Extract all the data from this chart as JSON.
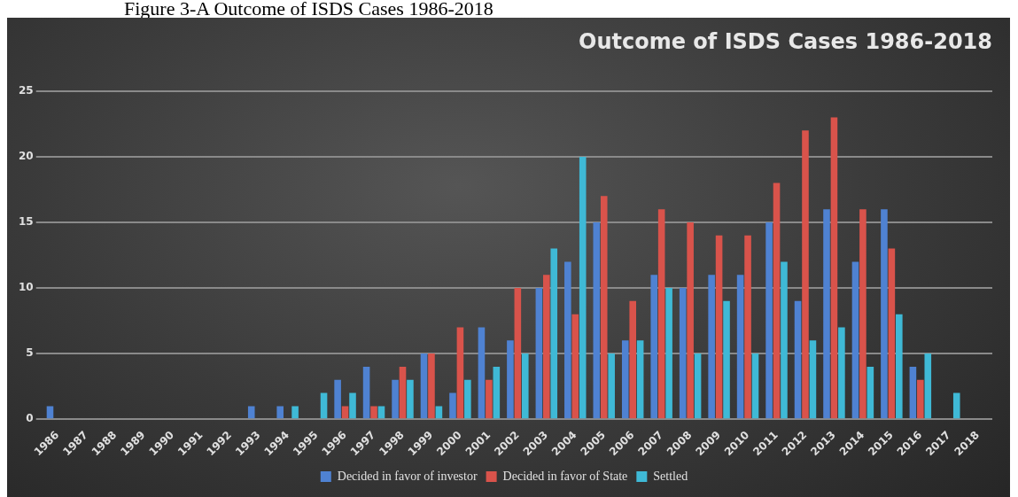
{
  "chart_data": {
    "type": "bar",
    "title": "Outcome of ISDS Cases 1986-2018",
    "annotations": [
      "Figure 3-A Outcome of ISDS Cases 1986-2018"
    ],
    "categories": [
      "1986",
      "1987",
      "1988",
      "1989",
      "1990",
      "1991",
      "1992",
      "1993",
      "1994",
      "1995",
      "1996",
      "1997",
      "1998",
      "1999",
      "2000",
      "2001",
      "2002",
      "2003",
      "2004",
      "2005",
      "2006",
      "2007",
      "2008",
      "2009",
      "2010",
      "2011",
      "2012",
      "2013",
      "2014",
      "2015",
      "2016",
      "2017",
      "2018"
    ],
    "series": [
      {
        "name": "Decided in favor of investor",
        "color": "#4f82d2",
        "values": [
          1,
          null,
          null,
          null,
          null,
          null,
          null,
          1,
          1,
          null,
          3,
          4,
          3,
          5,
          2,
          7,
          6,
          10,
          12,
          15,
          6,
          11,
          10,
          11,
          11,
          15,
          9,
          16,
          12,
          16,
          4,
          null,
          null
        ]
      },
      {
        "name": "Decided in favor of State",
        "color": "#d9534b",
        "values": [
          null,
          null,
          null,
          null,
          null,
          null,
          null,
          null,
          null,
          null,
          1,
          1,
          4,
          5,
          7,
          3,
          10,
          11,
          8,
          17,
          9,
          16,
          15,
          14,
          14,
          18,
          22,
          23,
          16,
          13,
          3,
          null,
          null
        ]
      },
      {
        "name": "Settled",
        "color": "#3fb9d6",
        "values": [
          null,
          null,
          null,
          null,
          null,
          null,
          null,
          null,
          1,
          2,
          2,
          1,
          3,
          1,
          3,
          4,
          5,
          13,
          20,
          5,
          6,
          10,
          5,
          9,
          5,
          12,
          6,
          7,
          4,
          8,
          5,
          2,
          null
        ]
      }
    ],
    "ylim": [
      0,
      25
    ],
    "yticks": [
      0,
      5,
      10,
      15,
      20,
      25
    ],
    "grid": "y",
    "legend": "bottom"
  }
}
